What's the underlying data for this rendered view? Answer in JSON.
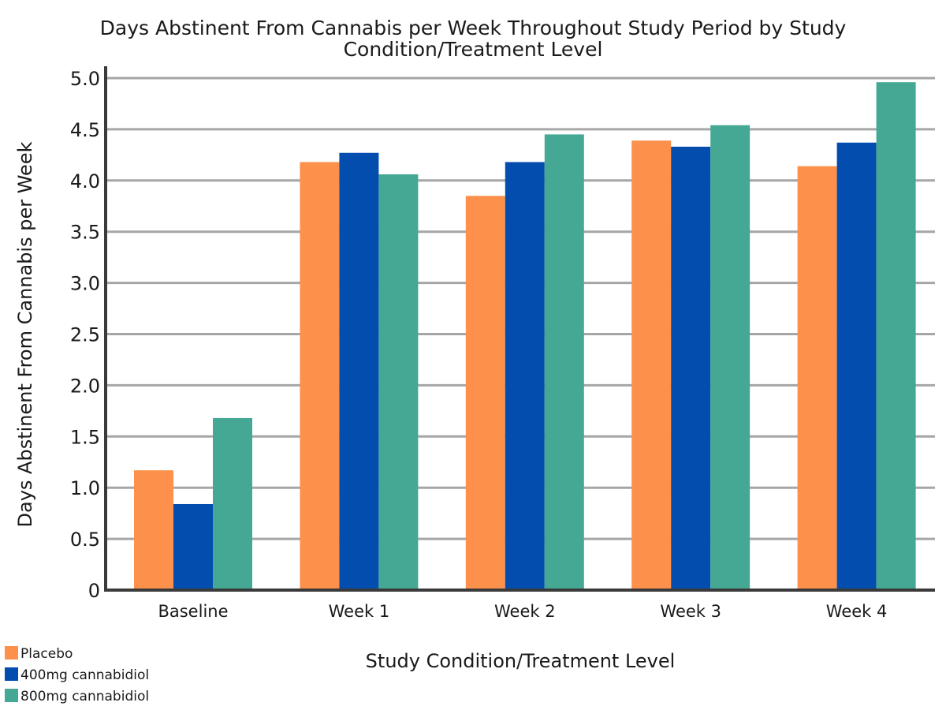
{
  "chart_data": {
    "type": "bar",
    "title": "Days Abstinent From Cannabis per Week Throughout Study Period by Study Condition/Treatment Level",
    "title_lines": [
      "Days Abstinent From Cannabis per Week Throughout Study Period by Study",
      "Condition/Treatment Level"
    ],
    "xlabel": "Study Condition/Treatment Level",
    "ylabel": "Days Abstinent From Cannabis per Week",
    "categories": [
      "Baseline",
      "Week 1",
      "Week 2",
      "Week 3",
      "Week 4"
    ],
    "yticks": [
      "0",
      "0.5",
      "1.0",
      "1.5",
      "2.0",
      "2.5",
      "3.0",
      "3.5",
      "4.0",
      "4.5",
      "5.0"
    ],
    "ylim": [
      0,
      5
    ],
    "grid": true,
    "legend_position": "bottom-left",
    "series": [
      {
        "name": "Placebo",
        "color": "#fd914c",
        "values": [
          1.17,
          4.18,
          3.85,
          4.39,
          4.14
        ]
      },
      {
        "name": "400mg cannabidiol",
        "color": "#034daf",
        "values": [
          0.84,
          4.27,
          4.18,
          4.33,
          4.37
        ]
      },
      {
        "name": "800mg cannabidiol",
        "color": "#45a894",
        "values": [
          1.68,
          4.06,
          4.45,
          4.54,
          4.96
        ]
      }
    ]
  }
}
